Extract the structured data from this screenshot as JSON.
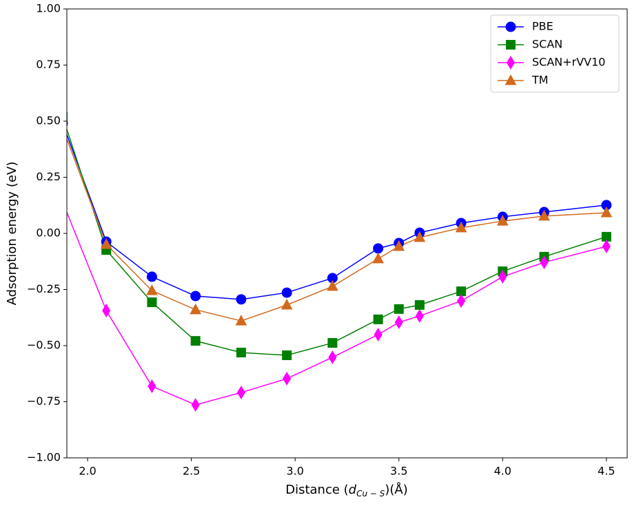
{
  "chart_data": {
    "type": "line",
    "xlabel": [
      {
        "text": "Distance ("
      },
      {
        "text": "d",
        "style": "italic"
      },
      {
        "text": "Cu − S",
        "style": "sub"
      },
      {
        "text": ")(Å)"
      }
    ],
    "ylabel": "Adsorption energy (eV)",
    "x": [
      1.88,
      2.09,
      2.31,
      2.52,
      2.74,
      2.96,
      3.18,
      3.4,
      3.5,
      3.6,
      3.8,
      4.0,
      4.2,
      4.5
    ],
    "series": [
      {
        "name": "PBE",
        "color": "#0000ff",
        "marker": "circle",
        "values": [
          0.49,
          -0.037,
          -0.193,
          -0.279,
          -0.294,
          -0.264,
          -0.199,
          -0.067,
          -0.043,
          0.003,
          0.046,
          0.074,
          0.095,
          0.126
        ]
      },
      {
        "name": "SCAN",
        "color": "#008000",
        "marker": "square",
        "values": [
          0.52,
          -0.074,
          -0.307,
          -0.479,
          -0.531,
          -0.543,
          -0.488,
          -0.383,
          -0.337,
          -0.319,
          -0.258,
          -0.169,
          -0.104,
          -0.015
        ]
      },
      {
        "name": "SCAN+rVV10",
        "color": "#ff00ff",
        "marker": "diamond",
        "values": [
          0.14,
          -0.344,
          -0.681,
          -0.764,
          -0.709,
          -0.647,
          -0.552,
          -0.451,
          -0.396,
          -0.368,
          -0.301,
          -0.193,
          -0.129,
          -0.058
        ]
      },
      {
        "name": "TM",
        "color": "#d2691e",
        "marker": "triangle",
        "values": [
          0.47,
          -0.049,
          -0.255,
          -0.34,
          -0.39,
          -0.319,
          -0.236,
          -0.113,
          -0.058,
          -0.018,
          0.025,
          0.055,
          0.077,
          0.092
        ]
      }
    ],
    "xlim": [
      1.9,
      4.6
    ],
    "xticks": [
      {
        "value": 2,
        "label": "2.0"
      },
      2.5,
      {
        "value": 3,
        "label": "3.0"
      },
      3.5,
      {
        "value": 4,
        "label": "4.0"
      },
      4.5
    ],
    "ylim": [
      -1,
      1
    ],
    "yticks": [
      {
        "value": -1,
        "label": "−1.00"
      },
      {
        "value": -0.75,
        "label": "−0.75"
      },
      {
        "value": -0.5,
        "label": "−0.50"
      },
      {
        "value": -0.25,
        "label": "−0.25"
      },
      {
        "value": 0,
        "label": "0.00"
      },
      {
        "value": 0.25,
        "label": "0.25"
      },
      {
        "value": 0.5,
        "label": "0.50"
      },
      {
        "value": 0.75,
        "label": "0.75"
      },
      {
        "value": 1,
        "label": "1.00"
      }
    ],
    "legend": "upper right"
  }
}
